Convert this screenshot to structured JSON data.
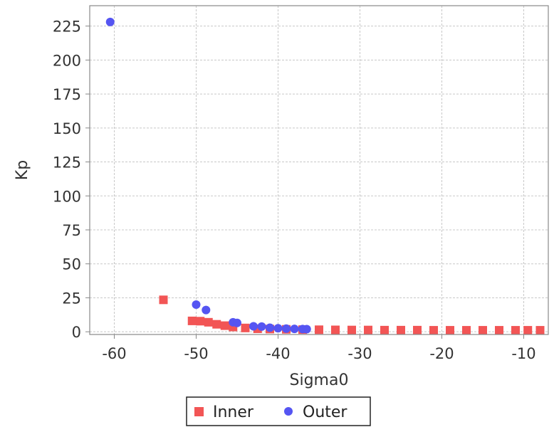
{
  "chart_data": {
    "type": "scatter",
    "title": "",
    "xlabel": "Sigma0",
    "ylabel": "Kp",
    "xlim": [
      -63,
      -7
    ],
    "ylim": [
      -2,
      240
    ],
    "xticks": [
      -60,
      -50,
      -40,
      -30,
      -20,
      -10
    ],
    "yticks": [
      0,
      25,
      50,
      75,
      100,
      125,
      150,
      175,
      200,
      225
    ],
    "grid": true,
    "legend_position": "bottom",
    "series": [
      {
        "name": "Inner",
        "marker": "square",
        "color": "#f25555",
        "points": [
          [
            -54.0,
            23.5
          ],
          [
            -50.5,
            8.0
          ],
          [
            -49.5,
            7.8
          ],
          [
            -48.5,
            7.0
          ],
          [
            -47.5,
            5.5
          ],
          [
            -46.5,
            4.5
          ],
          [
            -45.5,
            3.5
          ],
          [
            -44.0,
            2.8
          ],
          [
            -42.5,
            2.2
          ],
          [
            -41.0,
            2.0
          ],
          [
            -39.0,
            1.8
          ],
          [
            -37.0,
            1.6
          ],
          [
            -35.0,
            1.5
          ],
          [
            -33.0,
            1.4
          ],
          [
            -31.0,
            1.3
          ],
          [
            -29.0,
            1.3
          ],
          [
            -27.0,
            1.2
          ],
          [
            -25.0,
            1.2
          ],
          [
            -23.0,
            1.2
          ],
          [
            -21.0,
            1.1
          ],
          [
            -19.0,
            1.1
          ],
          [
            -17.0,
            1.1
          ],
          [
            -15.0,
            1.1
          ],
          [
            -13.0,
            1.1
          ],
          [
            -11.0,
            1.1
          ],
          [
            -9.5,
            1.1
          ],
          [
            -8.0,
            1.1
          ]
        ]
      },
      {
        "name": "Outer",
        "marker": "circle",
        "color": "#5555f2",
        "points": [
          [
            -60.5,
            228.0
          ],
          [
            -50.0,
            20.0
          ],
          [
            -48.8,
            16.0
          ],
          [
            -45.5,
            7.0
          ],
          [
            -45.0,
            6.5
          ],
          [
            -43.0,
            4.0
          ],
          [
            -42.0,
            3.8
          ],
          [
            -41.0,
            3.0
          ],
          [
            -40.0,
            2.6
          ],
          [
            -39.0,
            2.3
          ],
          [
            -38.0,
            2.1
          ],
          [
            -37.0,
            2.0
          ],
          [
            -36.5,
            1.9
          ]
        ]
      }
    ]
  }
}
